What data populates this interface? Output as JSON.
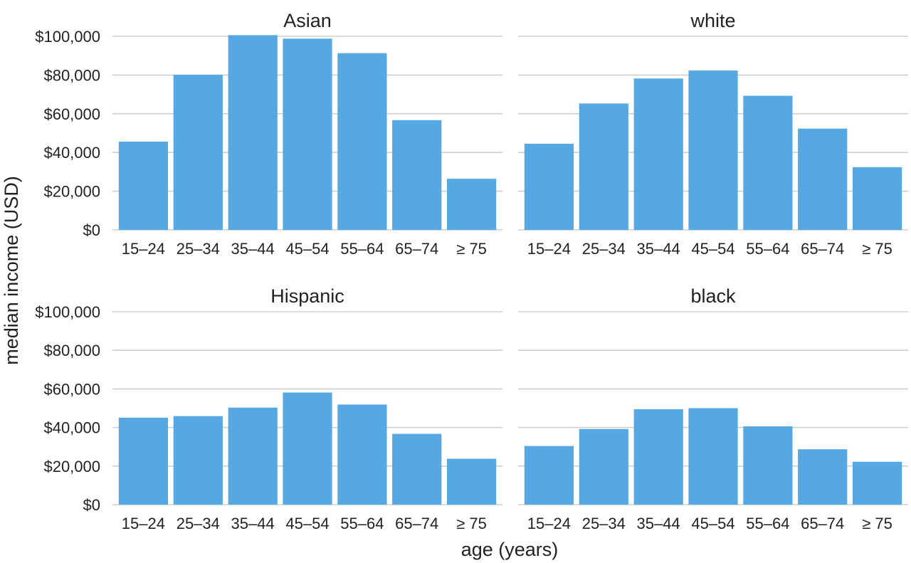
{
  "chart_data": {
    "type": "bar",
    "xlabel": "age (years)",
    "ylabel": "median income (USD)",
    "ylim": [
      0,
      100000
    ],
    "y_ticks": [
      0,
      20000,
      40000,
      60000,
      80000,
      100000
    ],
    "y_tick_labels": [
      "$0",
      "$20,000",
      "$40,000",
      "$60,000",
      "$80,000",
      "$100,000"
    ],
    "categories": [
      "15–24",
      "25–34",
      "35–44",
      "45–54",
      "55–64",
      "65–74",
      "≥ 75"
    ],
    "bar_color": "#56a8e2",
    "grid_color": "#cfcfcf",
    "grid": true,
    "panels": [
      {
        "title": "Asian",
        "values": [
          45600,
          80100,
          100600,
          98800,
          91300,
          56700,
          26400
        ]
      },
      {
        "title": "white",
        "values": [
          44500,
          65300,
          78200,
          82300,
          69300,
          52300,
          32400
        ]
      },
      {
        "title": "Hispanic",
        "values": [
          45100,
          45900,
          50300,
          58100,
          51900,
          36700,
          23800
        ]
      },
      {
        "title": "black",
        "values": [
          30400,
          39200,
          49500,
          50000,
          40600,
          28700,
          22200
        ]
      }
    ]
  }
}
